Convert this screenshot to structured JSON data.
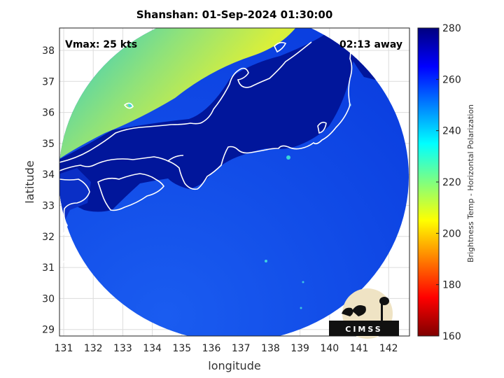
{
  "title": "Shanshan: 01-Sep-2024 01:30:00",
  "annotations": {
    "vmax": "Vmax: 25 kts",
    "away": "02:13 away"
  },
  "axes": {
    "xlabel": "longitude",
    "ylabel": "latitude",
    "x_ticks": [
      "131",
      "132",
      "133",
      "134",
      "135",
      "136",
      "137",
      "138",
      "139",
      "140",
      "141",
      "142"
    ],
    "y_ticks": [
      "38",
      "37",
      "36",
      "35",
      "34",
      "33",
      "32",
      "31",
      "30",
      "29"
    ]
  },
  "colorbar": {
    "label": "Brightness Temp - Horizontal Polarization",
    "ticks": [
      "280",
      "260",
      "240",
      "220",
      "200",
      "180",
      "160"
    ],
    "colormap": "jet"
  },
  "logo": {
    "text": "CIMSS"
  },
  "colors": {
    "deep_blue": "#00139a",
    "ocean_blue": "#0a46e6",
    "land_cyan": "#22d6c8",
    "land_yellow": "#d6ee3a",
    "coastline": "#ffffff",
    "logo_bg": "#efe3c4"
  }
}
